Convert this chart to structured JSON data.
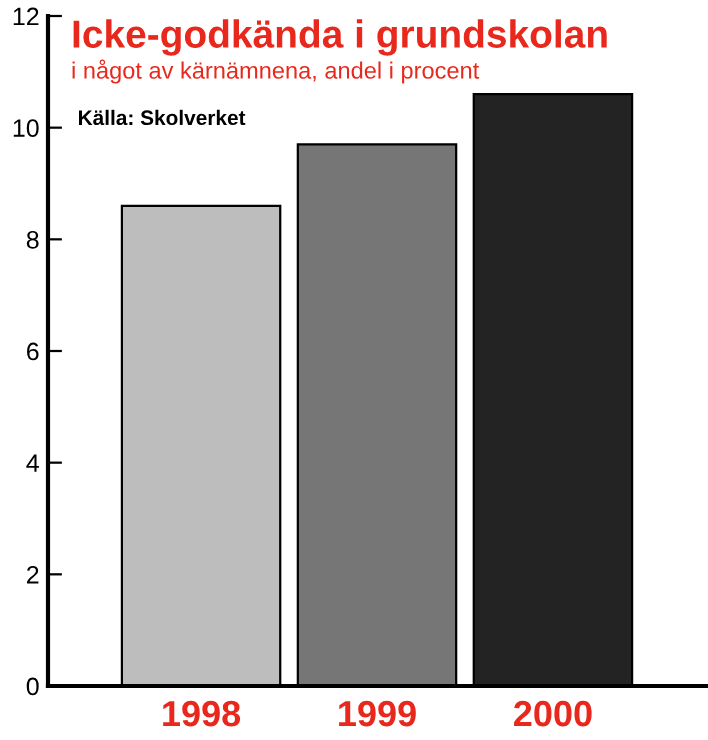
{
  "chart_data": {
    "type": "bar",
    "title": "Icke-godkända i grundskolan",
    "subtitle": "i något av kärnämnena, andel i procent",
    "annotations": [
      "Källa: Skolverket"
    ],
    "categories": [
      "1998",
      "1999",
      "2000"
    ],
    "values": [
      8.6,
      9.7,
      10.6
    ],
    "colors": [
      "#bdbdbd",
      "#767676",
      "#232323"
    ],
    "ylim": [
      0,
      12
    ],
    "yticks": [
      0,
      2,
      4,
      6,
      8,
      10,
      12
    ],
    "grid": false
  }
}
